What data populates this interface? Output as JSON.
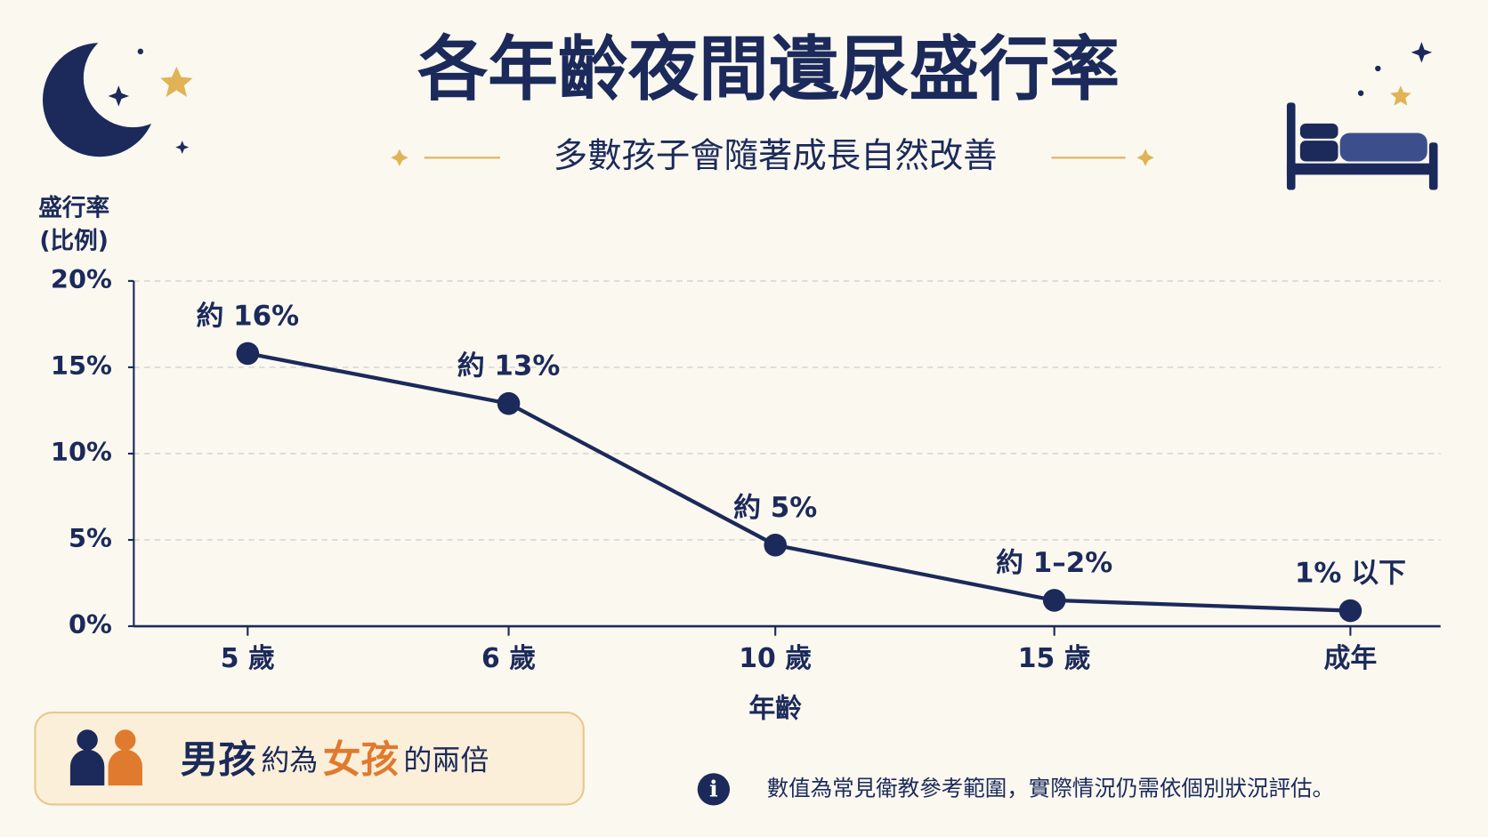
{
  "chart_data": {
    "type": "line",
    "title": "各年齡夜間遺尿盛行率",
    "subtitle": "多數孩子會隨著成長自然改善",
    "ylabel_lines": [
      "盛行率",
      "(比例)"
    ],
    "xlabel": "年齡",
    "categories": [
      "5 歲",
      "6 歲",
      "10 歲",
      "15 歲",
      "成年"
    ],
    "values": [
      15.8,
      12.9,
      4.7,
      1.5,
      0.9
    ],
    "value_labels": [
      "約 16%",
      "約 13%",
      "約 5%",
      "約 1–2%",
      "1% 以下"
    ],
    "color": "#1b2a5a",
    "ylim": [
      0,
      20
    ],
    "yticks": [
      {
        "value": 0,
        "label": "0%"
      },
      {
        "value": 5,
        "label": "5%"
      },
      {
        "value": 10,
        "label": "10%"
      },
      {
        "value": 15,
        "label": "15%"
      },
      {
        "value": 20,
        "label": "20%"
      }
    ],
    "grid": true,
    "note": {
      "boys": "男孩",
      "about": "約為",
      "girls": "女孩",
      "twice": "的兩倍"
    },
    "footnote": {
      "icon": "i",
      "text": "數值為常見衛教參考範圍，實際情況仍需依個別狀況評估。"
    }
  }
}
